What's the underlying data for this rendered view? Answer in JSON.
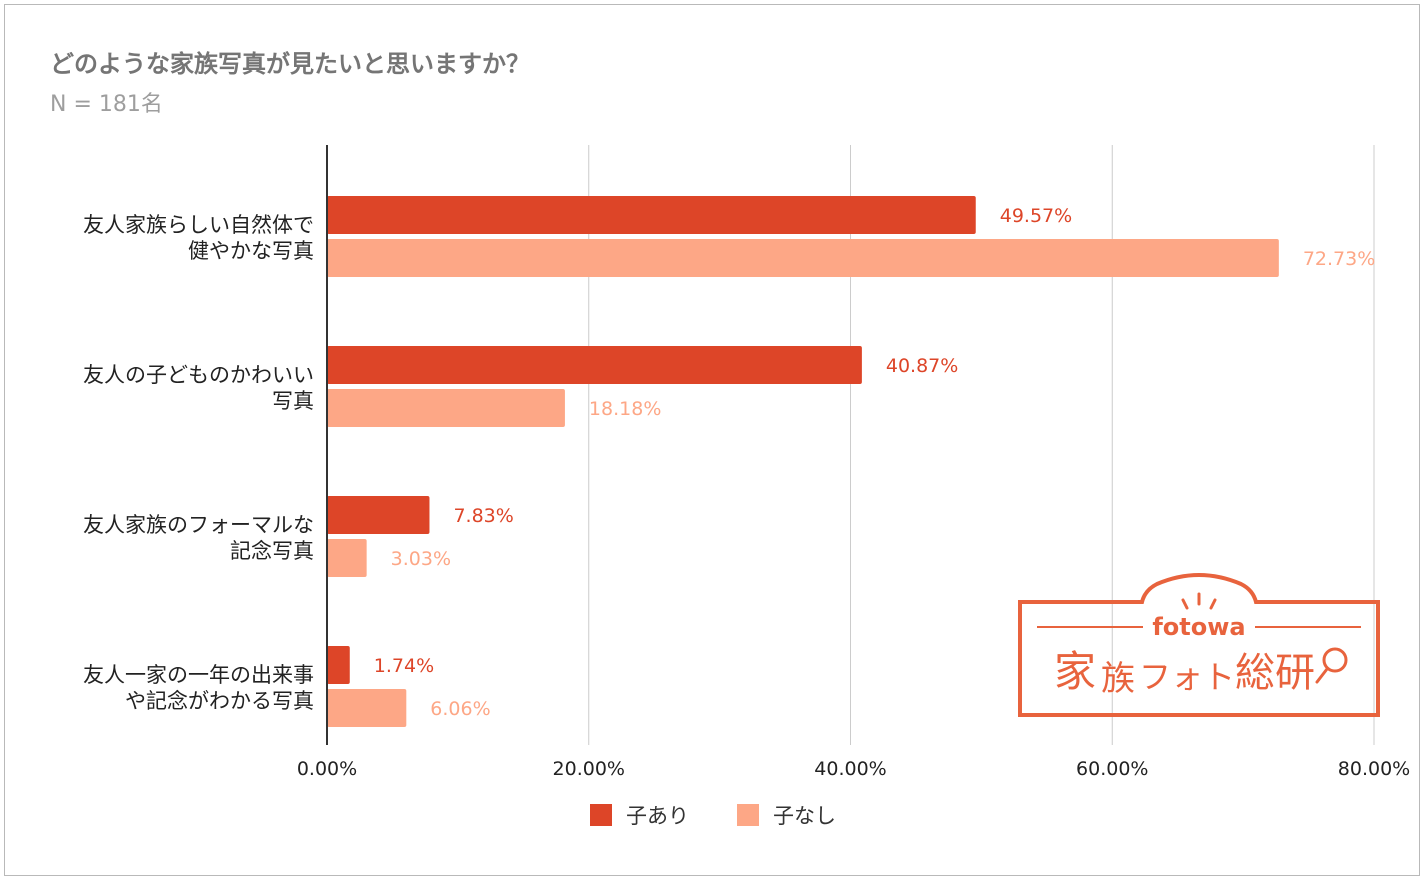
{
  "chart_data": {
    "type": "bar",
    "orientation": "horizontal",
    "title": "どのような家族写真が見たいと思いますか？",
    "subtitle": "N = 181名",
    "categories": [
      [
        "友人家族らしい自然体で",
        "健やかな写真"
      ],
      [
        "友人の子どものかわいい",
        "写真"
      ],
      [
        "友人家族のフォーマルな",
        "記念写真"
      ],
      [
        "友人一家の一年の出来事",
        "や記念がわかる写真"
      ]
    ],
    "series": [
      {
        "name": "子あり",
        "color": "#dd4528",
        "values": [
          49.57,
          40.87,
          7.83,
          1.74
        ],
        "labels": [
          "49.57%",
          "40.87%",
          "7.83%",
          "1.74%"
        ]
      },
      {
        "name": "子なし",
        "color": "#fda786",
        "values": [
          72.73,
          18.18,
          3.03,
          6.06
        ],
        "labels": [
          "72.73%",
          "18.18%",
          "3.03%",
          "6.06%"
        ]
      }
    ],
    "xlim": [
      0,
      80
    ],
    "xticks": [
      0,
      20,
      40,
      60,
      80
    ],
    "xtick_labels": [
      "0.00%",
      "20.00%",
      "40.00%",
      "60.00%",
      "80.00%"
    ],
    "grid": true,
    "legend_position": "bottom-center"
  },
  "logo": {
    "small_text": "fotowa",
    "big_text_1": "家",
    "big_text_2": "族",
    "big_text_3": "フォト",
    "big_text_4": "総研",
    "color": "#e8633d"
  }
}
